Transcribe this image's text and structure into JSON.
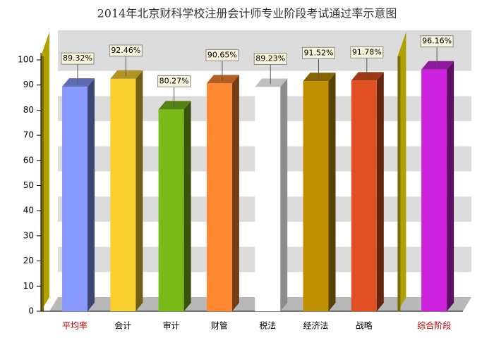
{
  "chart_data": {
    "type": "bar3d",
    "title": "2014年北京财科学校注册会计师专业阶段考试通过率示意图",
    "categories": [
      "平均率",
      "会计",
      "审计",
      "财管",
      "税法",
      "经济法",
      "战略",
      "综合阶段"
    ],
    "category_colors": [
      "#cc0000",
      "#000000",
      "#000000",
      "#000000",
      "#000000",
      "#000000",
      "#000000",
      "#cc0000"
    ],
    "values": [
      89.32,
      92.46,
      80.27,
      90.65,
      89.23,
      91.52,
      91.78,
      96.16
    ],
    "value_labels": [
      "89.32%",
      "92.46%",
      "80.27%",
      "90.65%",
      "89.23%",
      "91.52%",
      "91.78%",
      "96.16%"
    ],
    "colors": [
      "#8899ff",
      "#f8d030",
      "#7ab91a",
      "#ff8833",
      "#ffffff",
      "#c09000",
      "#e05020",
      "#cc22dd"
    ],
    "ylim": [
      0,
      100
    ],
    "yticks": [
      0,
      10,
      20,
      30,
      40,
      50,
      60,
      70,
      80,
      90,
      100
    ],
    "grid": true
  }
}
